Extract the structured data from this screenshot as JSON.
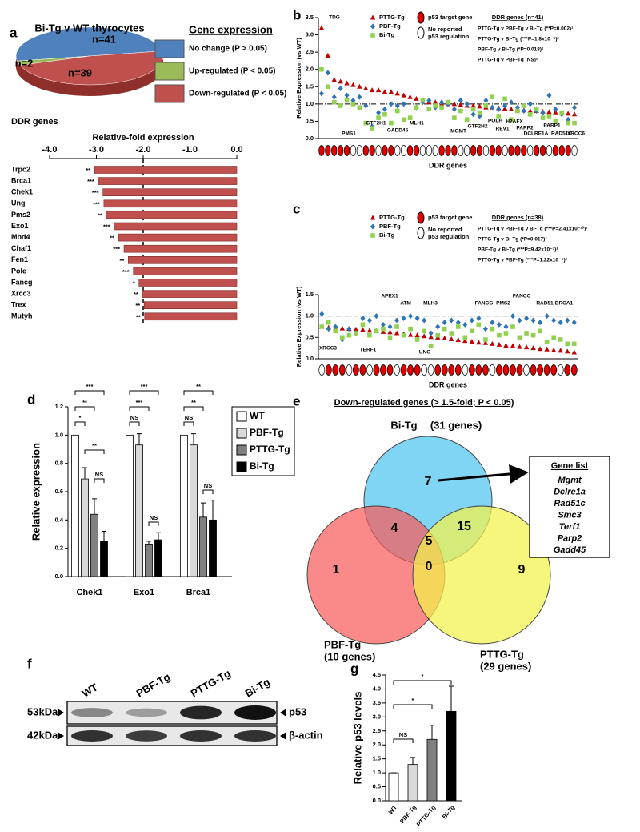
{
  "chart_data": [
    {
      "type": "pie",
      "panel": "a",
      "title": "Bi-Tg v WT thyrocytes",
      "legend_title": "Gene expression",
      "categories": [
        "No change (P > 0.05)",
        "Up-regulated (P < 0.05)",
        "Down-regulated (P < 0.05)"
      ],
      "values": [
        41,
        2,
        39
      ],
      "value_labels": [
        "n=41",
        "n=2",
        "n=39"
      ],
      "colors": [
        "#4f81bd",
        "#9bbb59",
        "#c0504d"
      ],
      "footer": "DDR genes"
    },
    {
      "type": "hbar",
      "title": "Relative-fold expression",
      "categories": [
        "Trpc2",
        "Brca1",
        "Chek1",
        "Ung",
        "Pms2",
        "Exo1",
        "Mbd4",
        "Chaf1",
        "Fen1",
        "Pole",
        "Fancg",
        "Xrcc3",
        "Trex",
        "Mutyh"
      ],
      "values": [
        -3.04,
        -2.96,
        -2.86,
        -2.84,
        -2.79,
        -2.62,
        -2.53,
        -2.41,
        -2.32,
        -2.21,
        -2.09,
        -2.02,
        -1.98,
        -1.97
      ],
      "significance": [
        "**",
        "***",
        "***",
        "***",
        "**",
        "***",
        "**",
        "***",
        "**",
        "***",
        "*",
        "**",
        "**",
        "**"
      ],
      "color": "#c0504d",
      "xlim": [
        -4,
        0
      ],
      "xticks": [
        {
          "value": -4,
          "label": "-4.0"
        },
        {
          "value": -3,
          "label": "-3.0"
        },
        {
          "value": -2,
          "label": "-2.0"
        },
        {
          "value": -1,
          "label": "-1.0"
        },
        {
          "value": 0,
          "label": "0.0"
        }
      ],
      "reference_line": -2
    },
    {
      "type": "scatter",
      "panel": "b",
      "ylabel": "Relative Expression (vs WT)",
      "xlabel": "DDR genes",
      "ylim": [
        0,
        3.5
      ],
      "yticks": [
        {
          "value": 0,
          "label": "0.0"
        },
        {
          "value": 0.5,
          "label": "0.5"
        },
        {
          "value": 1,
          "label": "1.0"
        },
        {
          "value": 1.5,
          "label": "1.5"
        },
        {
          "value": 2,
          "label": "2.0"
        },
        {
          "value": 2.5,
          "label": "2.5"
        },
        {
          "value": 3,
          "label": "3.0"
        },
        {
          "value": 3.5,
          "label": "3.5"
        }
      ],
      "reference_line": 1,
      "series": [
        {
          "name": "PTTG-Tg",
          "color": "#c00000",
          "marker": "triangle",
          "values": [
            3.2,
            2.4,
            1.7,
            1.65,
            1.6,
            1.55,
            1.5,
            1.45,
            1.4,
            1.4,
            1.35,
            1.35,
            1.3,
            1.25,
            1.2,
            1.15,
            1.1,
            1.05,
            1.05,
            1.0,
            1.0,
            1.0,
            0.98,
            0.95,
            0.95,
            0.93,
            0.9,
            0.9,
            0.88,
            0.87,
            0.85,
            0.83,
            0.82,
            0.8,
            0.8,
            0.78,
            0.77,
            0.76,
            0.75,
            0.72,
            0.7
          ]
        },
        {
          "name": "PBF-Tg",
          "color": "#2e75b6",
          "marker": "diamond",
          "values": [
            1.3,
            1.9,
            1.2,
            1.45,
            1.25,
            1.1,
            1.2,
            0.95,
            0.35,
            0.75,
            0.85,
            1.0,
            0.95,
            1.0,
            0.6,
            0.9,
            1.05,
            1.1,
            0.9,
            1.05,
            1.0,
            0.85,
            1.1,
            1.0,
            0.7,
            0.65,
            1.1,
            0.9,
            0.85,
            0.95,
            1.05,
            0.9,
            0.8,
            1.0,
            0.8,
            0.75,
            1.25,
            0.85,
            0.7,
            0.55,
            0.9
          ]
        },
        {
          "name": "Bi-Tg",
          "color": "#92d050",
          "marker": "square",
          "values": [
            2.0,
            1.5,
            1.05,
            0.95,
            1.1,
            1.0,
            0.9,
            0.45,
            0.3,
            0.6,
            0.7,
            0.45,
            0.8,
            0.55,
            0.6,
            0.9,
            1.1,
            0.85,
            0.95,
            0.9,
            1.05,
            0.6,
            0.8,
            0.55,
            0.85,
            0.75,
            0.95,
            1.2,
            0.65,
            1.15,
            0.55,
            0.8,
            0.95,
            0.7,
            0.85,
            0.6,
            0.65,
            0.5,
            0.75,
            0.45,
            0.45
          ]
        }
      ],
      "p53_target": [
        1,
        1,
        1,
        1,
        1,
        0,
        0,
        1,
        1,
        0,
        1,
        1,
        0,
        0,
        1,
        1,
        0,
        0,
        0,
        1,
        1,
        1,
        0,
        0,
        1,
        1,
        0,
        1,
        1,
        0,
        1,
        1,
        1,
        0,
        1,
        1,
        0,
        1,
        1,
        1,
        0
      ],
      "p53_legend": {
        "target": "p53 target gene",
        "none": [
          "No reported",
          "p53 regulation"
        ]
      },
      "stats_title": "DDR genes (n=41)",
      "stats": [
        "PTTG-Tg v PBF-Tg v Bi-Tg (**P=0.002)¹",
        "PTTG-Tg v Bi-Tg (***P=1.8x10⁻⁵)²",
        "PBF-Tg v Bi-Tg (*P=0.018)²",
        "PTTG-Tg v PBF-Tg (NS)²"
      ],
      "annotations": [
        "TDG",
        "PMS1",
        "GTF2H1",
        "GADD45",
        "MLH1",
        "MGMT",
        "GTF2H2",
        "POLH",
        "REV1",
        "H2AFX",
        "PARP2",
        "DCLRE1A",
        "PARP1",
        "RAD51C",
        "XRCC6"
      ]
    },
    {
      "type": "scatter",
      "panel": "c",
      "ylabel": "Relative Expression (vs WT)",
      "xlabel": "DDR genes",
      "ylim": [
        0,
        1.5
      ],
      "yticks": [
        {
          "value": 0,
          "label": "0.0"
        },
        {
          "value": 0.5,
          "label": "0.5"
        },
        {
          "value": 1,
          "label": "1.0"
        },
        {
          "value": 1.5,
          "label": "1.5"
        }
      ],
      "reference_line": 1,
      "series": [
        {
          "name": "PTTG-Tg",
          "color": "#c00000",
          "marker": "triangle",
          "values": [
            0.75,
            0.73,
            0.72,
            0.71,
            0.7,
            0.69,
            0.68,
            0.66,
            0.65,
            0.63,
            0.62,
            0.6,
            0.58,
            0.56,
            0.55,
            0.53,
            0.51,
            0.5,
            0.48,
            0.46,
            0.44,
            0.42,
            0.4,
            0.38,
            0.37,
            0.35,
            0.33,
            0.31,
            0.3,
            0.28,
            0.27,
            0.25,
            0.23,
            0.22,
            0.2,
            0.19,
            0.17,
            0.15
          ]
        },
        {
          "name": "PBF-Tg",
          "color": "#2e75b6",
          "marker": "diamond",
          "values": [
            1.05,
            0.7,
            0.75,
            0.45,
            0.7,
            0.6,
            0.95,
            0.9,
            1.0,
            0.8,
            0.75,
            0.9,
            0.95,
            1.0,
            0.95,
            0.9,
            0.6,
            0.75,
            0.85,
            0.9,
            0.85,
            0.8,
            0.9,
            0.95,
            0.7,
            0.85,
            0.8,
            0.75,
            1.0,
            0.9,
            0.95,
            0.9,
            0.85,
            1.0,
            0.9,
            0.85,
            0.9,
            0.85
          ]
        },
        {
          "name": "Bi-Tg",
          "color": "#92d050",
          "marker": "square",
          "values": [
            0.75,
            0.85,
            0.65,
            0.5,
            0.55,
            0.6,
            0.8,
            0.55,
            0.65,
            0.7,
            0.5,
            0.75,
            0.55,
            0.7,
            0.45,
            0.65,
            0.3,
            0.55,
            0.7,
            0.6,
            0.75,
            0.5,
            0.65,
            0.8,
            0.45,
            0.7,
            0.55,
            0.6,
            0.75,
            0.5,
            0.6,
            0.55,
            0.65,
            0.4,
            0.5,
            0.45,
            0.35,
            0.35
          ]
        }
      ],
      "p53_target": [
        0,
        1,
        1,
        1,
        0,
        1,
        1,
        0,
        1,
        1,
        1,
        0,
        1,
        1,
        1,
        0,
        0,
        1,
        1,
        1,
        1,
        0,
        1,
        1,
        1,
        0,
        1,
        1,
        1,
        1,
        0,
        1,
        1,
        1,
        1,
        0,
        1,
        1
      ],
      "p53_legend": {
        "target": "p53 target gene",
        "none": [
          "No reported",
          "p53 regulation"
        ]
      },
      "stats_title": "DDR genes (n=38)",
      "stats": [
        "PTTG-Tg v PBF-Tg v Bi-Tg (***P=2.41x10⁻¹⁰)¹",
        "PTTG-Tg v Bi-Tg (*P=0.017)²",
        "PBF-Tg v Bi-Tg (***P=9.42x10⁻⁷)²",
        "PTTG-Tg v PBF-Tg (***P=1.22x10⁻⁹)²"
      ],
      "annotations": [
        "XRCC3",
        "TERF1",
        "APEX1",
        "ATM",
        "MLH3",
        "UNG",
        "FANCG",
        "PMS2",
        "FANCC",
        "RAD51",
        "BRCA1"
      ]
    },
    {
      "type": "grouped_bar",
      "panel": "d",
      "ylabel": "Relative expression",
      "categories": [
        "Chek1",
        "Exo1",
        "Brca1"
      ],
      "series": [
        {
          "name": "WT",
          "color": "#ffffff",
          "values": [
            1.0,
            1.0,
            1.0
          ]
        },
        {
          "name": "PBF-Tg",
          "color": "#d9d9d9",
          "values": [
            0.69,
            0.93,
            0.93
          ],
          "errors": [
            0.08,
            0.08,
            0.08
          ]
        },
        {
          "name": "PTTG-Tg",
          "color": "#808080",
          "values": [
            0.44,
            0.23,
            0.42
          ],
          "errors": [
            0.11,
            0.02,
            0.1
          ]
        },
        {
          "name": "Bi-Tg",
          "color": "#000000",
          "values": [
            0.25,
            0.26,
            0.4
          ],
          "errors": [
            0.07,
            0.05,
            0.14
          ]
        }
      ],
      "ylim": [
        0,
        1.2
      ],
      "yticks": [
        {
          "value": 0,
          "label": "0.0"
        },
        {
          "value": 0.2,
          "label": "0.2"
        },
        {
          "value": 0.4,
          "label": "0.4"
        },
        {
          "value": 0.6,
          "label": "0.6"
        },
        {
          "value": 0.8,
          "label": "0.8"
        },
        {
          "value": 1,
          "label": "1.0"
        },
        {
          "value": 1.2,
          "label": "1.2"
        }
      ],
      "annotations": [
        "***",
        "**",
        "*",
        "**",
        "NS",
        "***",
        "***",
        "NS",
        "NS",
        "**",
        "**",
        "NS",
        "NS"
      ]
    },
    {
      "type": "venn",
      "panel": "e",
      "title": "Down-regulated genes (> 1.5-fold; P < 0.05)",
      "sets": [
        {
          "name": "Bi-Tg",
          "size_label": "(31 genes)",
          "color": "#4fc3f0"
        },
        {
          "name": "PBF-Tg",
          "size_label": "(10 genes)",
          "color": "#f85c5c"
        },
        {
          "name": "PTTG-Tg",
          "size_label": "(29 genes)",
          "color": "#f4f24a"
        }
      ],
      "region_counts": [
        "7",
        "4",
        "15",
        "5",
        "1",
        "0",
        "9"
      ],
      "list_title": "Gene list",
      "genes": [
        "Mgmt",
        "Dclre1a",
        "Rad51c",
        "Smc3",
        "Terf1",
        "Parp2",
        "Gadd45"
      ]
    },
    {
      "type": "blot",
      "panel": "f",
      "lanes": [
        "WT",
        "PBF-Tg",
        "PTTG-Tg",
        "Bi-Tg"
      ],
      "rows": [
        {
          "size": "53kDa",
          "protein": "p53"
        },
        {
          "size": "42kDa",
          "protein": "β-actin"
        }
      ]
    },
    {
      "type": "bar",
      "panel": "g",
      "ylabel": "Relative p53 levels",
      "categories": [
        "WT",
        "PBF-Tg",
        "PTTG-Tg",
        "Bi-Tg"
      ],
      "values": [
        1.0,
        1.3,
        2.2,
        3.2
      ],
      "errors": [
        0,
        0.25,
        0.5,
        0.9
      ],
      "colors": [
        "#ffffff",
        "#d9d9d9",
        "#808080",
        "#000000"
      ],
      "ylim": [
        0,
        4.5
      ],
      "yticks": [
        {
          "value": 0,
          "label": "0.0"
        },
        {
          "value": 0.5,
          "label": "0.5"
        },
        {
          "value": 1,
          "label": "1.0"
        },
        {
          "value": 1.5,
          "label": "1.5"
        },
        {
          "value": 2,
          "label": "2.0"
        },
        {
          "value": 2.5,
          "label": "2.5"
        },
        {
          "value": 3,
          "label": "3.0"
        },
        {
          "value": 3.5,
          "label": "3.5"
        },
        {
          "value": 4,
          "label": "4.0"
        },
        {
          "value": 4.5,
          "label": "4.5"
        }
      ],
      "annotations": [
        "*",
        "*",
        "NS"
      ]
    }
  ]
}
